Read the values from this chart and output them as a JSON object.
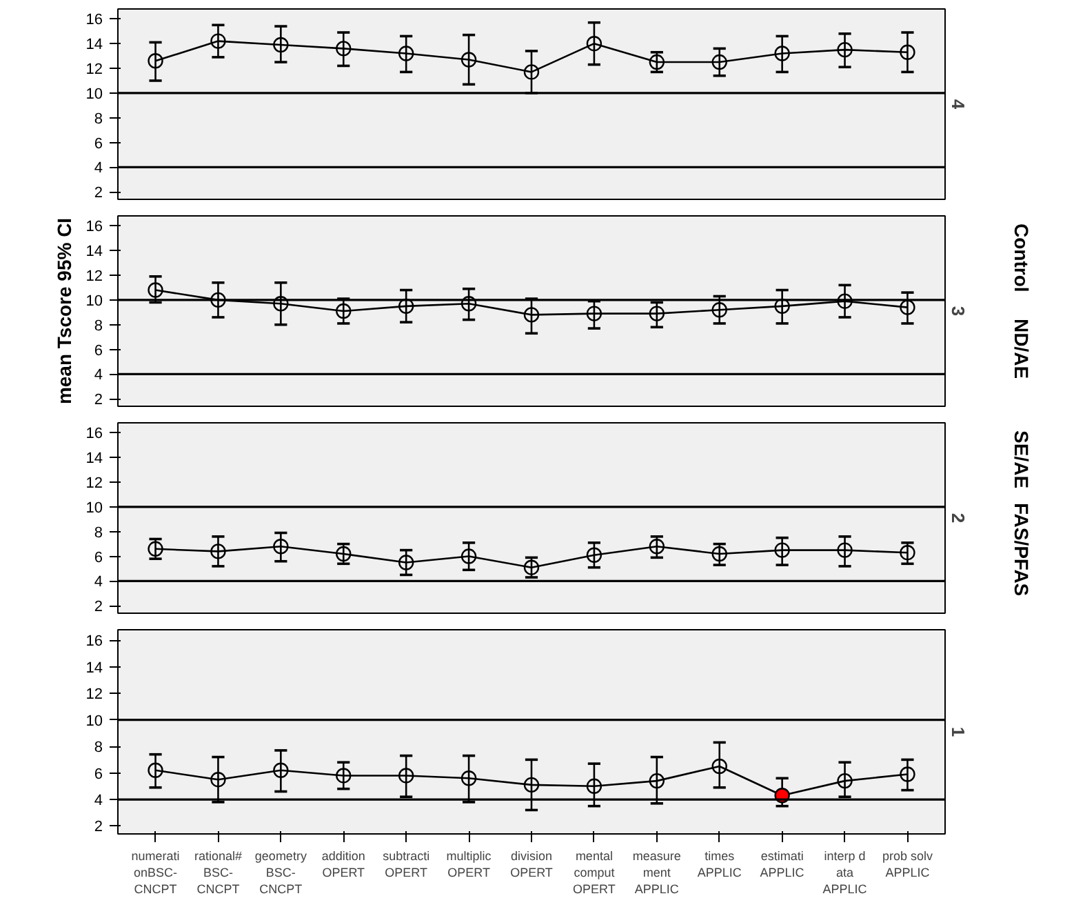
{
  "chart_data": [
    {
      "type": "line",
      "title": "4",
      "categories": [
        null,
        null,
        null,
        null,
        null,
        null,
        null,
        null,
        null,
        null,
        null,
        null,
        null
      ],
      "ylim": [
        1.4,
        16.8
      ],
      "yticks": [
        2,
        4,
        6,
        8,
        10,
        12,
        14,
        16
      ],
      "grid": false,
      "marker": "circle",
      "tick_labels": "y",
      "ref_lines": [
        {
          "axis": "y",
          "value": 10
        },
        {
          "axis": "y",
          "value": 4
        }
      ],
      "series": [
        {
          "color": "#000000",
          "values": [
            12.6,
            14.2,
            13.9,
            13.6,
            13.2,
            12.7,
            11.7,
            14.0,
            12.5,
            12.5,
            13.2,
            13.5,
            13.3
          ],
          "errors": [
            [
              11.0,
              14.1
            ],
            [
              12.9,
              15.5
            ],
            [
              12.5,
              15.4
            ],
            [
              12.2,
              14.9
            ],
            [
              11.7,
              14.6
            ],
            [
              10.7,
              14.7
            ],
            [
              10.0,
              13.4
            ],
            [
              12.3,
              15.7
            ],
            [
              11.7,
              13.3
            ],
            [
              11.4,
              13.6
            ],
            [
              11.7,
              14.6
            ],
            [
              12.1,
              14.8
            ],
            [
              11.7,
              14.9
            ]
          ]
        }
      ]
    },
    {
      "type": "line",
      "title": "3",
      "ylabel": "mean Tscore 95% CI",
      "annotations": [
        "Control",
        "ND/AE"
      ],
      "categories": [
        null,
        null,
        null,
        null,
        null,
        null,
        null,
        null,
        null,
        null,
        null,
        null,
        null
      ],
      "ylim": [
        1.4,
        16.8
      ],
      "yticks": [
        2,
        4,
        6,
        8,
        10,
        12,
        14,
        16
      ],
      "grid": false,
      "marker": "circle",
      "tick_labels": "y",
      "ref_lines": [
        {
          "axis": "y",
          "value": 10
        },
        {
          "axis": "y",
          "value": 4
        }
      ],
      "series": [
        {
          "color": "#000000",
          "values": [
            10.8,
            10.0,
            9.7,
            9.1,
            9.5,
            9.7,
            8.8,
            8.9,
            8.9,
            9.2,
            9.5,
            9.9,
            9.4
          ],
          "errors": [
            [
              9.8,
              11.9
            ],
            [
              8.6,
              11.4
            ],
            [
              8.0,
              11.4
            ],
            [
              8.1,
              10.1
            ],
            [
              8.2,
              10.8
            ],
            [
              8.4,
              10.9
            ],
            [
              7.3,
              10.1
            ],
            [
              7.7,
              9.9
            ],
            [
              7.8,
              9.8
            ],
            [
              8.1,
              10.3
            ],
            [
              8.1,
              10.8
            ],
            [
              8.6,
              11.2
            ],
            [
              8.1,
              10.6
            ]
          ]
        }
      ]
    },
    {
      "type": "line",
      "title": "2",
      "annotations": [
        "SE/AE",
        "FAS/PFAS"
      ],
      "categories": [
        null,
        null,
        null,
        null,
        null,
        null,
        null,
        null,
        null,
        null,
        null,
        null,
        null
      ],
      "ylim": [
        1.4,
        16.8
      ],
      "yticks": [
        2,
        4,
        6,
        8,
        10,
        12,
        14,
        16
      ],
      "grid": false,
      "marker": "circle",
      "tick_labels": "y",
      "ref_lines": [
        {
          "axis": "y",
          "value": 10
        },
        {
          "axis": "y",
          "value": 4
        }
      ],
      "series": [
        {
          "color": "#000000",
          "values": [
            6.6,
            6.4,
            6.8,
            6.2,
            5.5,
            6.0,
            5.1,
            6.1,
            6.8,
            6.2,
            6.5,
            6.5,
            6.3
          ],
          "errors": [
            [
              5.8,
              7.4
            ],
            [
              5.2,
              7.6
            ],
            [
              5.6,
              7.9
            ],
            [
              5.4,
              7.0
            ],
            [
              4.5,
              6.5
            ],
            [
              4.9,
              7.1
            ],
            [
              4.3,
              5.9
            ],
            [
              5.1,
              7.1
            ],
            [
              5.9,
              7.6
            ],
            [
              5.3,
              7.0
            ],
            [
              5.3,
              7.5
            ],
            [
              5.2,
              7.6
            ],
            [
              5.4,
              7.1
            ]
          ]
        }
      ]
    },
    {
      "type": "line",
      "title": "1",
      "categories": [
        "numerati\nonBSC-\nCNCPT",
        "rational#\nBSC-\nCNCPT",
        "geometry\nBSC-\nCNCPT",
        "addition\nOPERT",
        "subtracti\nOPERT",
        "multiplic\nOPERT",
        "division\nOPERT",
        "mental\ncomput\nOPERT",
        "measure\nment\nAPPLIC",
        "times\nAPPLIC",
        "estimati\nAPPLIC",
        "interp d\nata\nAPPLIC",
        "prob solv\nAPPLIC"
      ],
      "ylim": [
        1.4,
        16.8
      ],
      "yticks": [
        2,
        4,
        6,
        8,
        10,
        12,
        14,
        16
      ],
      "grid": false,
      "marker": "circle",
      "ref_lines": [
        {
          "axis": "y",
          "value": 10
        },
        {
          "axis": "y",
          "value": 4
        }
      ],
      "series": [
        {
          "color": "#000000",
          "colors": [
            "#000000",
            "#000000",
            "#000000",
            "#000000",
            "#000000",
            "#000000",
            "#000000",
            "#000000",
            "#000000",
            "#000000",
            "#ff0000",
            "#000000",
            "#000000"
          ],
          "values": [
            6.2,
            5.5,
            6.2,
            5.8,
            5.8,
            5.6,
            5.1,
            5.0,
            5.4,
            6.5,
            4.3,
            5.4,
            5.9
          ],
          "errors": [
            [
              4.9,
              7.4
            ],
            [
              3.8,
              7.2
            ],
            [
              4.6,
              7.7
            ],
            [
              4.8,
              6.8
            ],
            [
              4.2,
              7.3
            ],
            [
              3.8,
              7.3
            ],
            [
              3.2,
              7.0
            ],
            [
              3.5,
              6.7
            ],
            [
              3.7,
              7.2
            ],
            [
              4.9,
              8.3
            ],
            [
              3.5,
              5.6
            ],
            [
              4.2,
              6.8
            ],
            [
              4.7,
              7.0
            ]
          ]
        }
      ]
    }
  ]
}
